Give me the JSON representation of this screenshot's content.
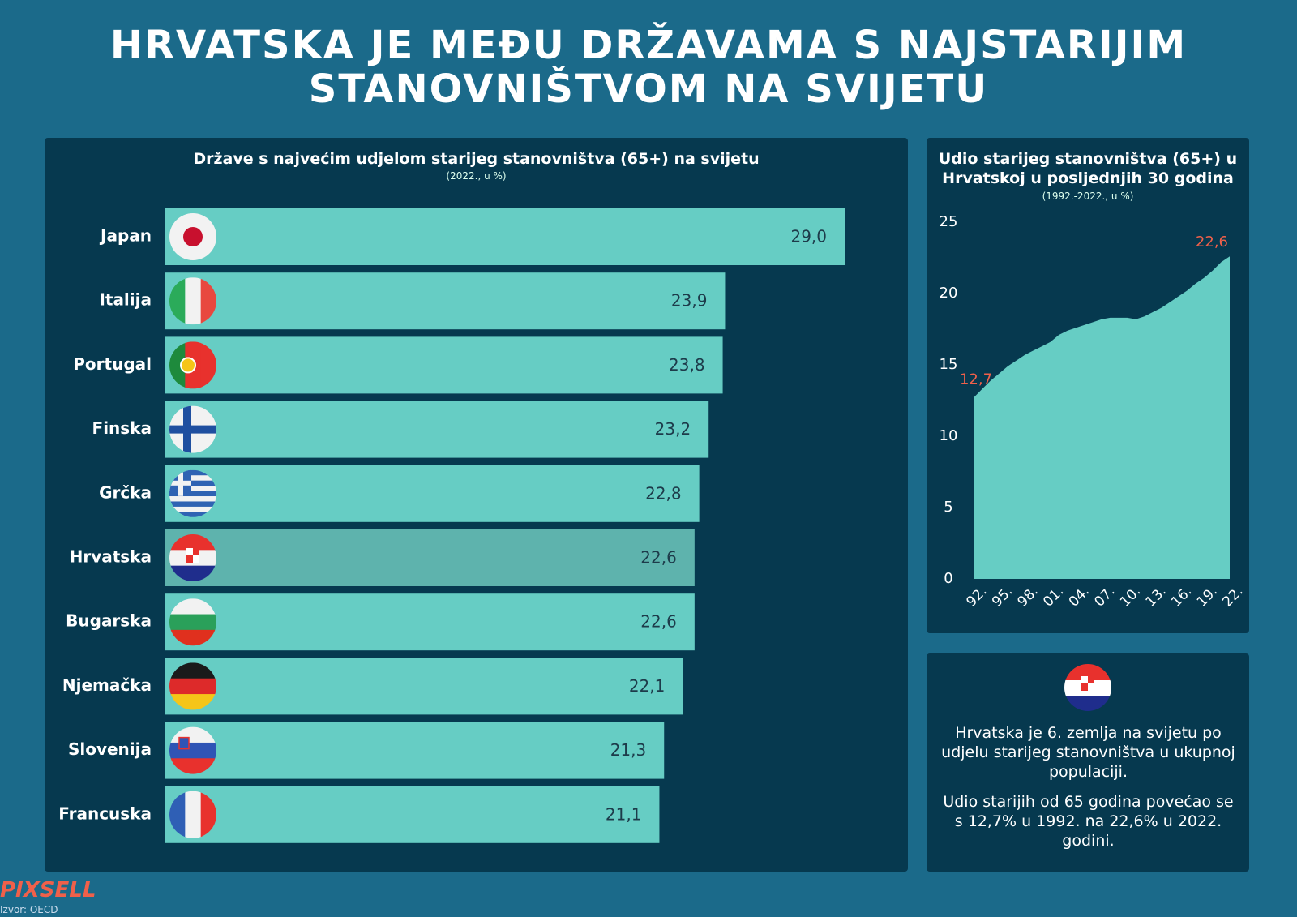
{
  "title": [
    "HRVATSKA JE MEĐU DRŽAVAMA S NAJSTARIJIM",
    "STANOVNIŠTVOM NA SVIJETU"
  ],
  "chart_data": [
    {
      "type": "bar",
      "orientation": "horizontal",
      "title": "Države s najvećim udjelom starijeg stanovništva (65+) na svijetu",
      "subtitle": "(2022., u %)",
      "categories": [
        "Japan",
        "Italija",
        "Portugal",
        "Finska",
        "Grčka",
        "Hrvatska",
        "Bugarska",
        "Njemačka",
        "Slovenija",
        "Francuska"
      ],
      "values": [
        29.0,
        23.9,
        23.8,
        23.2,
        22.8,
        22.6,
        22.6,
        22.1,
        21.3,
        21.1
      ],
      "value_labels": [
        "29,0",
        "23,9",
        "23,8",
        "23,2",
        "22,8",
        "22,6",
        "22,6",
        "22,1",
        "21,3",
        "21,1"
      ],
      "colors": [
        "#66cdc4",
        "#66cdc4",
        "#66cdc4",
        "#66cdc4",
        "#66cdc4",
        "#5eb3ad",
        "#66cdc4",
        "#66cdc4",
        "#66cdc4",
        "#66cdc4"
      ]
    },
    {
      "type": "area",
      "title": "Udio starijeg stanovništva (65+) u Hrvatskoj u posljednjih 30 godina",
      "subtitle": "(1992.-2022., u %)",
      "categories": [
        "92.",
        null,
        null,
        "95.",
        null,
        null,
        "98.",
        null,
        null,
        "01.",
        null,
        null,
        "04.",
        null,
        null,
        "07.",
        null,
        null,
        "10.",
        null,
        null,
        "13.",
        null,
        null,
        "16.",
        null,
        null,
        "19.",
        null,
        null,
        "22."
      ],
      "values": [
        12.7,
        13.3,
        13.9,
        14.4,
        14.9,
        15.3,
        15.7,
        16.0,
        16.3,
        16.6,
        17.1,
        17.4,
        17.6,
        17.8,
        18.0,
        18.2,
        18.3,
        18.3,
        18.3,
        18.2,
        18.4,
        18.7,
        19.0,
        19.4,
        19.8,
        20.2,
        20.7,
        21.1,
        21.6,
        22.2,
        22.6
      ],
      "value_labels": [
        "12,7",
        null,
        null,
        null,
        null,
        null,
        null,
        null,
        null,
        null,
        null,
        null,
        null,
        null,
        null,
        null,
        null,
        null,
        null,
        null,
        null,
        null,
        null,
        null,
        null,
        null,
        null,
        null,
        null,
        null,
        "22,6"
      ],
      "color": "#66cdc4",
      "label_color": "#f0604a",
      "ylim": [
        0,
        25
      ],
      "yticks": [
        0,
        5,
        10,
        15,
        20,
        25
      ]
    }
  ],
  "info": [
    "Hrvatska je 6. zemlja na svijetu po udjelu starijeg stanovništva u ukupnoj populaciji.",
    "Udio starijih od 65 godina povećao se s 12,7% u 1992. na 22,6% u 2022. godini."
  ],
  "logo": "PIXSELL",
  "source": "Izvor: OECD"
}
